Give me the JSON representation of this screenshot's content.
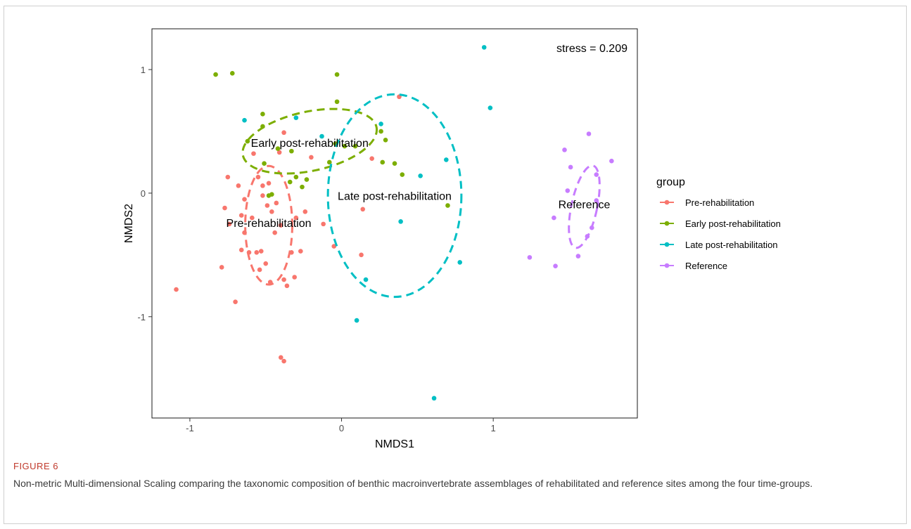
{
  "figure": {
    "label": "FIGURE 6",
    "caption": "Non-metric Multi-dimensional Scaling comparing the taxonomic composition of benthic macroinvertebrate assemblages of rehabilitated and reference sites among the four time-groups."
  },
  "chart_data": {
    "type": "scatter",
    "xlabel": "NMDS1",
    "ylabel": "NMDS2",
    "xlim": [
      -1.25,
      1.95
    ],
    "ylim": [
      -1.82,
      1.33
    ],
    "xticks": [
      -1,
      0,
      1
    ],
    "yticks": [
      -1,
      0,
      1
    ],
    "grid": false,
    "annotation": "stress = 0.209",
    "legend": {
      "title": "group",
      "position": "right"
    },
    "series": [
      {
        "name": "Pre-rehabilitation",
        "color": "#F8766D",
        "points": [
          [
            -1.09,
            -0.78
          ],
          [
            -0.79,
            -0.6
          ],
          [
            -0.77,
            -0.12
          ],
          [
            -0.75,
            0.13
          ],
          [
            -0.74,
            -0.25
          ],
          [
            -0.7,
            -0.88
          ],
          [
            -0.68,
            0.06
          ],
          [
            -0.66,
            -0.18
          ],
          [
            -0.64,
            -0.05
          ],
          [
            -0.66,
            -0.46
          ],
          [
            -0.64,
            -0.32
          ],
          [
            -0.61,
            -0.48
          ],
          [
            -0.59,
            -0.2
          ],
          [
            -0.58,
            0.32
          ],
          [
            -0.56,
            -0.48
          ],
          [
            -0.55,
            0.13
          ],
          [
            -0.54,
            -0.62
          ],
          [
            -0.53,
            -0.47
          ],
          [
            -0.52,
            -0.02
          ],
          [
            -0.52,
            0.06
          ],
          [
            -0.5,
            -0.57
          ],
          [
            -0.49,
            -0.1
          ],
          [
            -0.48,
            0.08
          ],
          [
            -0.47,
            -0.72
          ],
          [
            -0.46,
            -0.15
          ],
          [
            -0.44,
            -0.32
          ],
          [
            -0.43,
            -0.08
          ],
          [
            -0.41,
            0.33
          ],
          [
            -0.4,
            -0.26
          ],
          [
            -0.38,
            0.49
          ],
          [
            -0.38,
            -0.7
          ],
          [
            -0.36,
            -0.75
          ],
          [
            -0.33,
            -0.48
          ],
          [
            -0.31,
            -0.68
          ],
          [
            -0.3,
            -0.2
          ],
          [
            -0.27,
            -0.47
          ],
          [
            -0.24,
            -0.15
          ],
          [
            -0.2,
            0.29
          ],
          [
            -0.12,
            -0.25
          ],
          [
            -0.05,
            -0.43
          ],
          [
            0.13,
            -0.5
          ],
          [
            0.14,
            -0.13
          ],
          [
            0.2,
            0.28
          ],
          [
            0.38,
            0.78
          ],
          [
            -0.4,
            -1.33
          ],
          [
            -0.38,
            -1.36
          ]
        ]
      },
      {
        "name": "Early post-rehabilitation",
        "color": "#7CAE00",
        "points": [
          [
            -0.83,
            0.96
          ],
          [
            -0.72,
            0.97
          ],
          [
            -0.62,
            0.42
          ],
          [
            -0.52,
            0.64
          ],
          [
            -0.52,
            0.54
          ],
          [
            -0.51,
            0.24
          ],
          [
            -0.48,
            -0.02
          ],
          [
            -0.46,
            -0.01
          ],
          [
            -0.42,
            0.36
          ],
          [
            -0.34,
            0.09
          ],
          [
            -0.33,
            0.34
          ],
          [
            -0.3,
            0.13
          ],
          [
            -0.26,
            0.05
          ],
          [
            -0.23,
            0.11
          ],
          [
            -0.08,
            0.25
          ],
          [
            -0.04,
            0.4
          ],
          [
            -0.03,
            0.74
          ],
          [
            -0.03,
            0.96
          ],
          [
            0.09,
            0.38
          ],
          [
            0.26,
            0.5
          ],
          [
            0.29,
            0.43
          ],
          [
            0.27,
            0.25
          ],
          [
            0.35,
            0.24
          ],
          [
            0.4,
            0.15
          ],
          [
            0.7,
            -0.1
          ],
          [
            0.02,
            0.38
          ]
        ]
      },
      {
        "name": "Late post-rehabilitation",
        "color": "#00BFC4",
        "points": [
          [
            0.94,
            1.18
          ],
          [
            0.98,
            0.69
          ],
          [
            -0.64,
            0.59
          ],
          [
            -0.3,
            0.61
          ],
          [
            -0.13,
            0.46
          ],
          [
            0.26,
            0.56
          ],
          [
            0.52,
            0.14
          ],
          [
            0.69,
            0.27
          ],
          [
            0.39,
            -0.23
          ],
          [
            0.78,
            -0.56
          ],
          [
            0.16,
            -0.7
          ],
          [
            0.1,
            -1.03
          ],
          [
            0.61,
            -1.66
          ]
        ]
      },
      {
        "name": "Reference",
        "color": "#C77CFF",
        "points": [
          [
            1.63,
            0.48
          ],
          [
            1.78,
            0.26
          ],
          [
            1.47,
            0.35
          ],
          [
            1.51,
            0.21
          ],
          [
            1.68,
            0.15
          ],
          [
            1.49,
            0.02
          ],
          [
            1.68,
            -0.06
          ],
          [
            1.4,
            -0.2
          ],
          [
            1.65,
            -0.28
          ],
          [
            1.62,
            -0.35
          ],
          [
            1.56,
            -0.51
          ],
          [
            1.24,
            -0.52
          ],
          [
            1.41,
            -0.59
          ]
        ]
      }
    ],
    "ellipses": [
      {
        "group": "Pre-rehabilitation",
        "label": "Pre-rehabilitation",
        "color": "#F8766D",
        "center": [
          -0.48,
          -0.26
        ],
        "semi_axes": [
          0.155,
          0.48
        ],
        "rotation_deg": 0
      },
      {
        "group": "Early post-rehabilitation",
        "label": "Early post-rehabilitation",
        "color": "#7CAE00",
        "center": [
          -0.21,
          0.42
        ],
        "semi_axes": [
          0.45,
          0.24
        ],
        "rotation_deg": -12
      },
      {
        "group": "Late post-rehabilitation",
        "label": "Late post-rehabilitation",
        "color": "#00BFC4",
        "center": [
          0.35,
          -0.02
        ],
        "semi_axes": [
          0.44,
          0.82
        ],
        "rotation_deg": 0
      },
      {
        "group": "Reference",
        "label": "Reference",
        "color": "#C77CFF",
        "center": [
          1.6,
          -0.11
        ],
        "semi_axes": [
          0.085,
          0.34
        ],
        "rotation_deg": 12
      }
    ],
    "ellipse_labels": [
      {
        "text": "Early post-rehabilitation",
        "x": -0.21,
        "y": 0.41
      },
      {
        "text": "Pre-rehabilitation",
        "x": -0.48,
        "y": -0.24
      },
      {
        "text": "Late post-rehabilitation",
        "x": 0.35,
        "y": -0.02
      },
      {
        "text": "Reference",
        "x": 1.6,
        "y": -0.09
      }
    ]
  }
}
